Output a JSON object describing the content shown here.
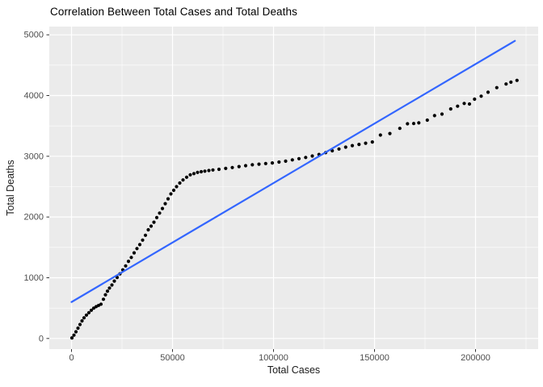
{
  "chart_data": {
    "type": "scatter",
    "title": "Correlation Between Total Cases and Total Deaths",
    "xlabel": "Total Cases",
    "ylabel": "Total Deaths",
    "x_ticks": [
      0,
      50000,
      100000,
      150000,
      200000
    ],
    "x_tick_labels": [
      "0",
      "50000",
      "100000",
      "150000",
      "200000"
    ],
    "x_minor_ticks": [
      25000,
      75000,
      125000,
      175000,
      225000
    ],
    "y_ticks": [
      0,
      1000,
      2000,
      3000,
      4000,
      5000
    ],
    "y_tick_labels": [
      "0",
      "1000",
      "2000",
      "3000",
      "4000",
      "5000"
    ],
    "xlim": [
      -11000,
      231000
    ],
    "ylim": [
      -175,
      5135
    ],
    "grid": true,
    "legend_position": "none",
    "points": [
      [
        200,
        10
      ],
      [
        1200,
        55
      ],
      [
        2200,
        110
      ],
      [
        3200,
        170
      ],
      [
        4200,
        230
      ],
      [
        5200,
        290
      ],
      [
        6200,
        340
      ],
      [
        7400,
        385
      ],
      [
        8600,
        425
      ],
      [
        9800,
        465
      ],
      [
        11000,
        500
      ],
      [
        12200,
        525
      ],
      [
        13400,
        545
      ],
      [
        14600,
        565
      ],
      [
        15800,
        645
      ],
      [
        16800,
        720
      ],
      [
        17800,
        780
      ],
      [
        18800,
        830
      ],
      [
        20000,
        880
      ],
      [
        21200,
        945
      ],
      [
        22600,
        1005
      ],
      [
        24000,
        1065
      ],
      [
        25400,
        1130
      ],
      [
        26800,
        1195
      ],
      [
        28200,
        1270
      ],
      [
        29600,
        1335
      ],
      [
        31000,
        1410
      ],
      [
        32400,
        1480
      ],
      [
        33800,
        1545
      ],
      [
        35200,
        1620
      ],
      [
        36600,
        1700
      ],
      [
        38000,
        1790
      ],
      [
        39400,
        1850
      ],
      [
        40800,
        1915
      ],
      [
        42200,
        1990
      ],
      [
        43600,
        2065
      ],
      [
        45000,
        2140
      ],
      [
        46400,
        2220
      ],
      [
        47800,
        2300
      ],
      [
        49200,
        2380
      ],
      [
        50600,
        2440
      ],
      [
        52000,
        2500
      ],
      [
        53600,
        2560
      ],
      [
        55200,
        2610
      ],
      [
        57000,
        2655
      ],
      [
        58800,
        2695
      ],
      [
        60600,
        2715
      ],
      [
        62400,
        2735
      ],
      [
        64200,
        2745
      ],
      [
        66000,
        2755
      ],
      [
        68000,
        2765
      ],
      [
        70000,
        2775
      ],
      [
        73000,
        2785
      ],
      [
        76300,
        2800
      ],
      [
        79600,
        2815
      ],
      [
        82900,
        2830
      ],
      [
        86200,
        2845
      ],
      [
        89500,
        2860
      ],
      [
        92800,
        2870
      ],
      [
        96100,
        2880
      ],
      [
        99400,
        2890
      ],
      [
        102700,
        2905
      ],
      [
        106000,
        2920
      ],
      [
        109300,
        2940
      ],
      [
        112600,
        2960
      ],
      [
        115900,
        2980
      ],
      [
        119200,
        3005
      ],
      [
        122500,
        3030
      ],
      [
        125800,
        3060
      ],
      [
        129100,
        3090
      ],
      [
        132400,
        3120
      ],
      [
        135700,
        3150
      ],
      [
        139000,
        3175
      ],
      [
        142300,
        3195
      ],
      [
        145600,
        3215
      ],
      [
        148900,
        3235
      ],
      [
        152900,
        3350
      ],
      [
        157600,
        3375
      ],
      [
        162500,
        3460
      ],
      [
        166300,
        3535
      ],
      [
        169400,
        3540
      ],
      [
        171900,
        3550
      ],
      [
        176100,
        3595
      ],
      [
        179700,
        3670
      ],
      [
        183400,
        3695
      ],
      [
        187700,
        3780
      ],
      [
        191100,
        3825
      ],
      [
        194400,
        3870
      ],
      [
        197000,
        3860
      ],
      [
        199500,
        3940
      ],
      [
        202800,
        3990
      ],
      [
        206200,
        4055
      ],
      [
        210500,
        4130
      ],
      [
        215100,
        4190
      ],
      [
        217500,
        4220
      ],
      [
        220500,
        4250
      ]
    ],
    "trend_line": {
      "type": "linear",
      "x": [
        0,
        219500
      ],
      "y": [
        600,
        4900
      ]
    },
    "colors": {
      "background": "#FFFFFF",
      "panel": "#EBEBEB",
      "grid": "#FFFFFF",
      "point": "#000000",
      "trend": "#3366FF",
      "tick_text": "#4D4D4D",
      "tick_mark": "#333333",
      "axis_title_text": "#1A1A1A",
      "title_text": "#000000"
    }
  }
}
